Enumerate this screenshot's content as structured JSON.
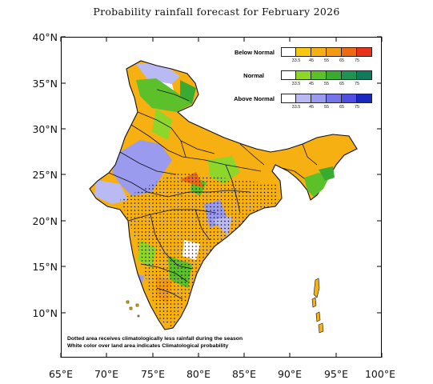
{
  "title": "Probability rainfall forecast for February 2026",
  "latitude_labels": [
    "40°N",
    "35°N",
    "30°N",
    "25°N",
    "20°N",
    "15°N",
    "10°N"
  ],
  "longitude_labels": [
    "65°E",
    "70°E",
    "75°E",
    "80°E",
    "85°E",
    "90°E",
    "95°E",
    "100°E"
  ],
  "legend": {
    "below": {
      "label": "Below Normal",
      "colors": [
        "#ffffff",
        "#f9c80e",
        "#f6b012",
        "#f29b12",
        "#ee6a12",
        "#e8321a"
      ],
      "ticks": [
        "33.5",
        "45",
        "55",
        "65",
        "75"
      ]
    },
    "normal": {
      "label": "Normal",
      "colors": [
        "#ffffff",
        "#8ed62a",
        "#5cc02a",
        "#38ab30",
        "#1f9452",
        "#0f7a5c"
      ],
      "ticks": [
        "33.5",
        "45",
        "55",
        "65",
        "75"
      ]
    },
    "above": {
      "label": "Above Normal",
      "colors": [
        "#ffffff",
        "#b9b9f3",
        "#9a9aee",
        "#7575ea",
        "#4f4fe6",
        "#1a28c2"
      ],
      "ticks": [
        "33.5",
        "45",
        "55",
        "65",
        "75"
      ]
    }
  },
  "notes": {
    "line1": "Dotted area receives climatologically less rainfall during the season",
    "line2": "White color over land area indicates Climatological probability"
  }
}
